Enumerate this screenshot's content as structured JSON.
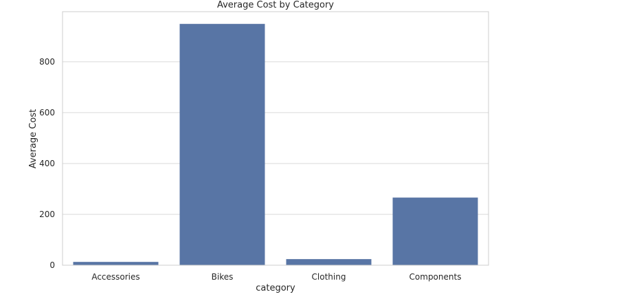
{
  "chart_data": {
    "type": "bar",
    "title": "Average Cost by Category",
    "xlabel": "category",
    "ylabel": "Average Cost",
    "categories": [
      "Accessories",
      "Bikes",
      "Clothing",
      "Components"
    ],
    "values": [
      13,
      949,
      24,
      266
    ],
    "ylim": [
      0,
      997
    ],
    "yticks": [
      0,
      200,
      400,
      600,
      800
    ],
    "grid": true,
    "colors": {
      "bar": "#5875a5",
      "grid": "#d9d9d9",
      "frame": "#cccccc",
      "text": "#262626"
    }
  }
}
